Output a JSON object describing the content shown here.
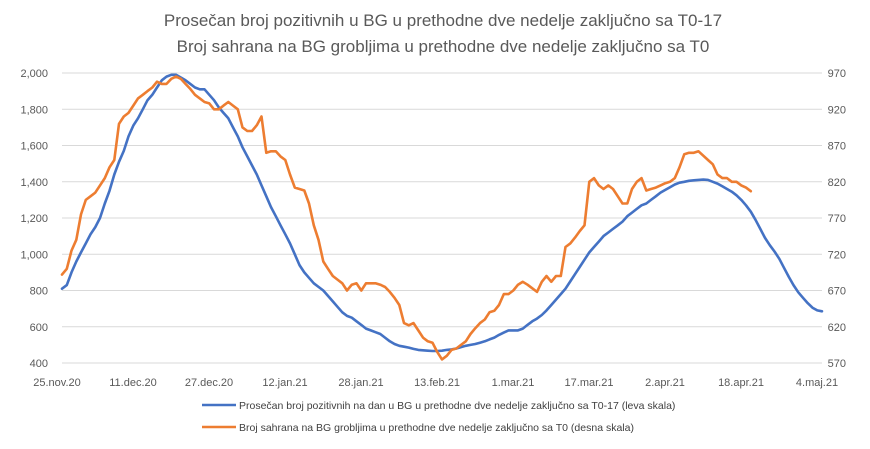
{
  "chart_data": {
    "type": "line",
    "title": "Prosečan broj pozitivnih u BG u prethodne dve nedelje zaključno sa T0-17",
    "subtitle": "Broj sahrana na BG grobljima u prethodne dve nedelje zaključno sa T0",
    "x_tick_labels": [
      "25.nov.20",
      "11.dec.20",
      "27.dec.20",
      "12.jan.21",
      "28.jan.21",
      "13.feb.21",
      "1.mar.21",
      "17.mar.21",
      "2.apr.21",
      "18.apr.21",
      "4.maj.21"
    ],
    "x_start_label": "25.nov.20",
    "x_total_days": 160,
    "y_left": {
      "min": 400,
      "max": 2000,
      "ticks": [
        "400",
        "600",
        "800",
        "1,000",
        "1,200",
        "1,400",
        "1,600",
        "1,800",
        "2,000"
      ]
    },
    "y_right": {
      "min": 570,
      "max": 970,
      "ticks": [
        "570",
        "620",
        "670",
        "720",
        "770",
        "820",
        "870",
        "920",
        "970"
      ]
    },
    "grid": true,
    "legend_position": "bottom",
    "series": [
      {
        "name": "Prosečan broj pozitivnih na dan u BG u prethodne dve nedelje zaključno sa T0-17 (leva skala)",
        "axis": "left",
        "color": "#4472C4",
        "points": [
          [
            0,
            810
          ],
          [
            1,
            830
          ],
          [
            2,
            900
          ],
          [
            3,
            960
          ],
          [
            4,
            1010
          ],
          [
            5,
            1060
          ],
          [
            6,
            1110
          ],
          [
            7,
            1150
          ],
          [
            8,
            1200
          ],
          [
            9,
            1280
          ],
          [
            10,
            1350
          ],
          [
            11,
            1440
          ],
          [
            12,
            1510
          ],
          [
            13,
            1570
          ],
          [
            14,
            1650
          ],
          [
            15,
            1710
          ],
          [
            16,
            1750
          ],
          [
            17,
            1800
          ],
          [
            18,
            1850
          ],
          [
            19,
            1880
          ],
          [
            20,
            1920
          ],
          [
            21,
            1960
          ],
          [
            22,
            1980
          ],
          [
            23,
            1990
          ],
          [
            24,
            1990
          ],
          [
            25,
            1975
          ],
          [
            26,
            1960
          ],
          [
            27,
            1940
          ],
          [
            28,
            1920
          ],
          [
            29,
            1910
          ],
          [
            30,
            1910
          ],
          [
            31,
            1880
          ],
          [
            32,
            1850
          ],
          [
            33,
            1810
          ],
          [
            34,
            1780
          ],
          [
            35,
            1750
          ],
          [
            36,
            1700
          ],
          [
            37,
            1650
          ],
          [
            38,
            1590
          ],
          [
            39,
            1540
          ],
          [
            40,
            1490
          ],
          [
            41,
            1440
          ],
          [
            42,
            1380
          ],
          [
            43,
            1320
          ],
          [
            44,
            1260
          ],
          [
            45,
            1210
          ],
          [
            46,
            1160
          ],
          [
            47,
            1110
          ],
          [
            48,
            1060
          ],
          [
            49,
            1000
          ],
          [
            50,
            940
          ],
          [
            51,
            900
          ],
          [
            52,
            870
          ],
          [
            53,
            840
          ],
          [
            54,
            820
          ],
          [
            55,
            800
          ],
          [
            56,
            770
          ],
          [
            57,
            740
          ],
          [
            58,
            710
          ],
          [
            59,
            680
          ],
          [
            60,
            660
          ],
          [
            61,
            650
          ],
          [
            62,
            630
          ],
          [
            63,
            610
          ],
          [
            64,
            590
          ],
          [
            65,
            580
          ],
          [
            66,
            570
          ],
          [
            67,
            560
          ],
          [
            68,
            540
          ],
          [
            69,
            520
          ],
          [
            70,
            505
          ],
          [
            71,
            495
          ],
          [
            72,
            490
          ],
          [
            73,
            485
          ],
          [
            74,
            478
          ],
          [
            75,
            472
          ],
          [
            76,
            470
          ],
          [
            77,
            468
          ],
          [
            78,
            466
          ],
          [
            79,
            466
          ],
          [
            80,
            468
          ],
          [
            81,
            472
          ],
          [
            82,
            475
          ],
          [
            83,
            480
          ],
          [
            84,
            488
          ],
          [
            85,
            495
          ],
          [
            86,
            500
          ],
          [
            87,
            505
          ],
          [
            88,
            512
          ],
          [
            89,
            520
          ],
          [
            90,
            530
          ],
          [
            91,
            540
          ],
          [
            92,
            555
          ],
          [
            93,
            568
          ],
          [
            94,
            580
          ],
          [
            95,
            580
          ],
          [
            96,
            580
          ],
          [
            97,
            590
          ],
          [
            98,
            610
          ],
          [
            99,
            630
          ],
          [
            100,
            645
          ],
          [
            101,
            665
          ],
          [
            102,
            690
          ],
          [
            103,
            720
          ],
          [
            104,
            750
          ],
          [
            105,
            780
          ],
          [
            106,
            810
          ],
          [
            107,
            850
          ],
          [
            108,
            890
          ],
          [
            109,
            930
          ],
          [
            110,
            970
          ],
          [
            111,
            1010
          ],
          [
            112,
            1040
          ],
          [
            113,
            1070
          ],
          [
            114,
            1100
          ],
          [
            115,
            1120
          ],
          [
            116,
            1140
          ],
          [
            117,
            1160
          ],
          [
            118,
            1180
          ],
          [
            119,
            1210
          ],
          [
            120,
            1230
          ],
          [
            121,
            1250
          ],
          [
            122,
            1270
          ],
          [
            123,
            1280
          ],
          [
            124,
            1300
          ],
          [
            125,
            1320
          ],
          [
            126,
            1340
          ],
          [
            127,
            1355
          ],
          [
            128,
            1370
          ],
          [
            129,
            1385
          ],
          [
            130,
            1395
          ],
          [
            131,
            1400
          ],
          [
            132,
            1405
          ],
          [
            133,
            1408
          ],
          [
            134,
            1410
          ],
          [
            135,
            1412
          ],
          [
            136,
            1410
          ],
          [
            137,
            1400
          ],
          [
            138,
            1390
          ],
          [
            139,
            1375
          ],
          [
            140,
            1360
          ],
          [
            141,
            1345
          ],
          [
            142,
            1325
          ],
          [
            143,
            1300
          ],
          [
            144,
            1270
          ],
          [
            145,
            1235
          ],
          [
            146,
            1190
          ],
          [
            147,
            1140
          ],
          [
            148,
            1090
          ],
          [
            149,
            1050
          ],
          [
            150,
            1015
          ],
          [
            151,
            975
          ],
          [
            152,
            925
          ],
          [
            153,
            875
          ],
          [
            154,
            830
          ],
          [
            155,
            790
          ],
          [
            156,
            760
          ],
          [
            157,
            730
          ],
          [
            158,
            705
          ],
          [
            159,
            690
          ],
          [
            160,
            685
          ]
        ]
      },
      {
        "name": "Broj sahrana na BG grobljima u prethodne dve nedelje zaključno sa T0 (desna skala)",
        "axis": "right",
        "color": "#ED7D31",
        "points": [
          [
            0,
            692
          ],
          [
            1,
            700
          ],
          [
            2,
            725
          ],
          [
            3,
            740
          ],
          [
            4,
            775
          ],
          [
            5,
            795
          ],
          [
            6,
            800
          ],
          [
            7,
            805
          ],
          [
            8,
            815
          ],
          [
            9,
            825
          ],
          [
            10,
            840
          ],
          [
            11,
            850
          ],
          [
            12,
            900
          ],
          [
            13,
            910
          ],
          [
            14,
            915
          ],
          [
            15,
            925
          ],
          [
            16,
            935
          ],
          [
            17,
            940
          ],
          [
            18,
            945
          ],
          [
            19,
            950
          ],
          [
            20,
            958
          ],
          [
            21,
            955
          ],
          [
            22,
            955
          ],
          [
            23,
            962
          ],
          [
            24,
            965
          ],
          [
            25,
            962
          ],
          [
            26,
            955
          ],
          [
            27,
            948
          ],
          [
            28,
            940
          ],
          [
            29,
            935
          ],
          [
            30,
            930
          ],
          [
            31,
            928
          ],
          [
            32,
            920
          ],
          [
            33,
            920
          ],
          [
            34,
            925
          ],
          [
            35,
            930
          ],
          [
            36,
            925
          ],
          [
            37,
            920
          ],
          [
            38,
            895
          ],
          [
            39,
            890
          ],
          [
            40,
            890
          ],
          [
            41,
            898
          ],
          [
            42,
            910
          ],
          [
            43,
            860
          ],
          [
            44,
            862
          ],
          [
            45,
            862
          ],
          [
            46,
            855
          ],
          [
            47,
            850
          ],
          [
            48,
            830
          ],
          [
            49,
            812
          ],
          [
            50,
            810
          ],
          [
            51,
            808
          ],
          [
            52,
            790
          ],
          [
            53,
            760
          ],
          [
            54,
            740
          ],
          [
            55,
            710
          ],
          [
            56,
            700
          ],
          [
            57,
            690
          ],
          [
            58,
            685
          ],
          [
            59,
            680
          ],
          [
            60,
            670
          ],
          [
            61,
            678
          ],
          [
            62,
            680
          ],
          [
            63,
            670
          ],
          [
            64,
            680
          ],
          [
            65,
            680
          ],
          [
            66,
            680
          ],
          [
            67,
            678
          ],
          [
            68,
            675
          ],
          [
            69,
            668
          ],
          [
            70,
            660
          ],
          [
            71,
            650
          ],
          [
            72,
            625
          ],
          [
            73,
            622
          ],
          [
            74,
            625
          ],
          [
            75,
            615
          ],
          [
            76,
            605
          ],
          [
            77,
            600
          ],
          [
            78,
            598
          ],
          [
            79,
            585
          ],
          [
            80,
            575
          ],
          [
            81,
            580
          ],
          [
            82,
            588
          ],
          [
            83,
            590
          ],
          [
            84,
            595
          ],
          [
            85,
            600
          ],
          [
            86,
            610
          ],
          [
            87,
            618
          ],
          [
            88,
            625
          ],
          [
            89,
            630
          ],
          [
            90,
            640
          ],
          [
            91,
            642
          ],
          [
            92,
            650
          ],
          [
            93,
            665
          ],
          [
            94,
            665
          ],
          [
            95,
            670
          ],
          [
            96,
            678
          ],
          [
            97,
            682
          ],
          [
            98,
            678
          ],
          [
            99,
            673
          ],
          [
            100,
            668
          ],
          [
            101,
            682
          ],
          [
            102,
            690
          ],
          [
            103,
            682
          ],
          [
            104,
            690
          ],
          [
            105,
            690
          ],
          [
            106,
            730
          ],
          [
            107,
            735
          ],
          [
            108,
            743
          ],
          [
            109,
            752
          ],
          [
            110,
            760
          ],
          [
            111,
            820
          ],
          [
            112,
            825
          ],
          [
            113,
            815
          ],
          [
            114,
            810
          ],
          [
            115,
            815
          ],
          [
            116,
            810
          ],
          [
            117,
            800
          ],
          [
            118,
            790
          ],
          [
            119,
            790
          ],
          [
            120,
            810
          ],
          [
            121,
            820
          ],
          [
            122,
            825
          ],
          [
            123,
            808
          ],
          [
            124,
            810
          ],
          [
            125,
            812
          ],
          [
            126,
            815
          ],
          [
            127,
            818
          ],
          [
            128,
            820
          ],
          [
            129,
            825
          ],
          [
            130,
            840
          ],
          [
            131,
            858
          ],
          [
            132,
            860
          ],
          [
            133,
            860
          ],
          [
            134,
            862
          ],
          [
            135,
            856
          ],
          [
            136,
            850
          ],
          [
            137,
            844
          ],
          [
            138,
            830
          ],
          [
            139,
            825
          ],
          [
            140,
            825
          ],
          [
            141,
            820
          ],
          [
            142,
            820
          ],
          [
            143,
            815
          ],
          [
            144,
            812
          ],
          [
            145,
            807
          ]
        ]
      }
    ]
  }
}
